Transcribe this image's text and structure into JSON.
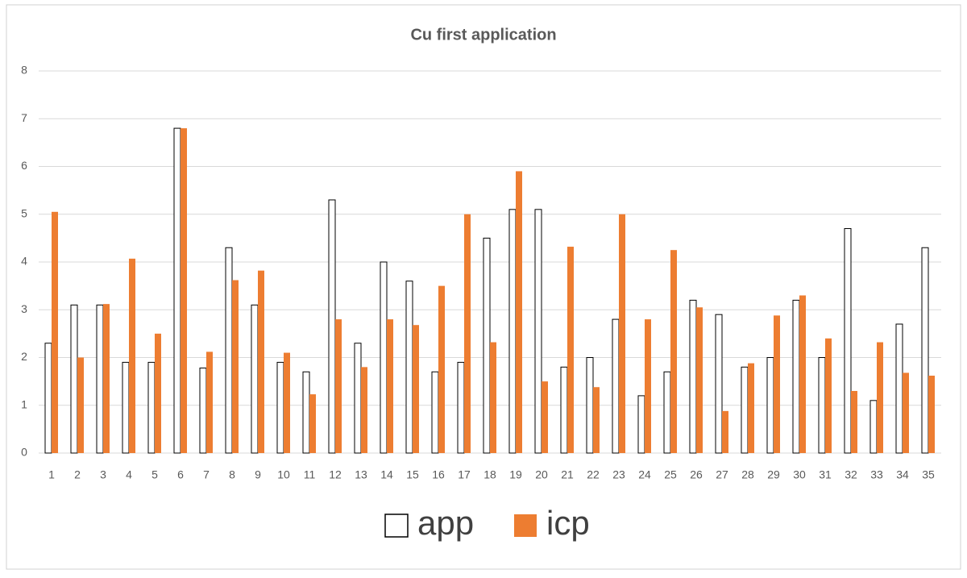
{
  "chart_data": {
    "type": "bar",
    "title": "Cu first application",
    "categories": [
      "1",
      "2",
      "3",
      "4",
      "5",
      "6",
      "7",
      "8",
      "9",
      "10",
      "11",
      "12",
      "13",
      "14",
      "15",
      "16",
      "17",
      "18",
      "19",
      "20",
      "21",
      "22",
      "23",
      "24",
      "25",
      "26",
      "27",
      "28",
      "29",
      "30",
      "31",
      "32",
      "33",
      "34",
      "35"
    ],
    "series": [
      {
        "name": "app",
        "color": "#ffffff",
        "values": [
          2.3,
          3.1,
          3.1,
          1.9,
          1.9,
          6.8,
          1.78,
          4.3,
          3.1,
          1.9,
          1.7,
          5.3,
          2.3,
          4.0,
          3.6,
          1.7,
          1.9,
          4.5,
          5.1,
          5.1,
          1.8,
          2.0,
          2.8,
          1.2,
          1.7,
          3.2,
          2.9,
          1.8,
          2.0,
          3.2,
          2.0,
          4.7,
          1.1,
          2.7,
          4.3
        ]
      },
      {
        "name": "icp",
        "color": "#ed7d31",
        "values": [
          5.05,
          2.0,
          3.12,
          4.07,
          2.5,
          6.8,
          2.12,
          3.62,
          3.82,
          2.1,
          1.23,
          2.8,
          1.8,
          2.8,
          2.68,
          3.5,
          5.0,
          2.32,
          5.9,
          1.5,
          4.32,
          1.38,
          5.0,
          2.8,
          4.25,
          3.05,
          0.88,
          1.88,
          2.88,
          3.3,
          2.4,
          1.3,
          2.32,
          1.68,
          1.62
        ]
      }
    ],
    "ylim": [
      0,
      8
    ],
    "yticks": [
      0,
      1,
      2,
      3,
      4,
      5,
      6,
      7,
      8
    ],
    "grid": true,
    "legend": "bottom"
  }
}
